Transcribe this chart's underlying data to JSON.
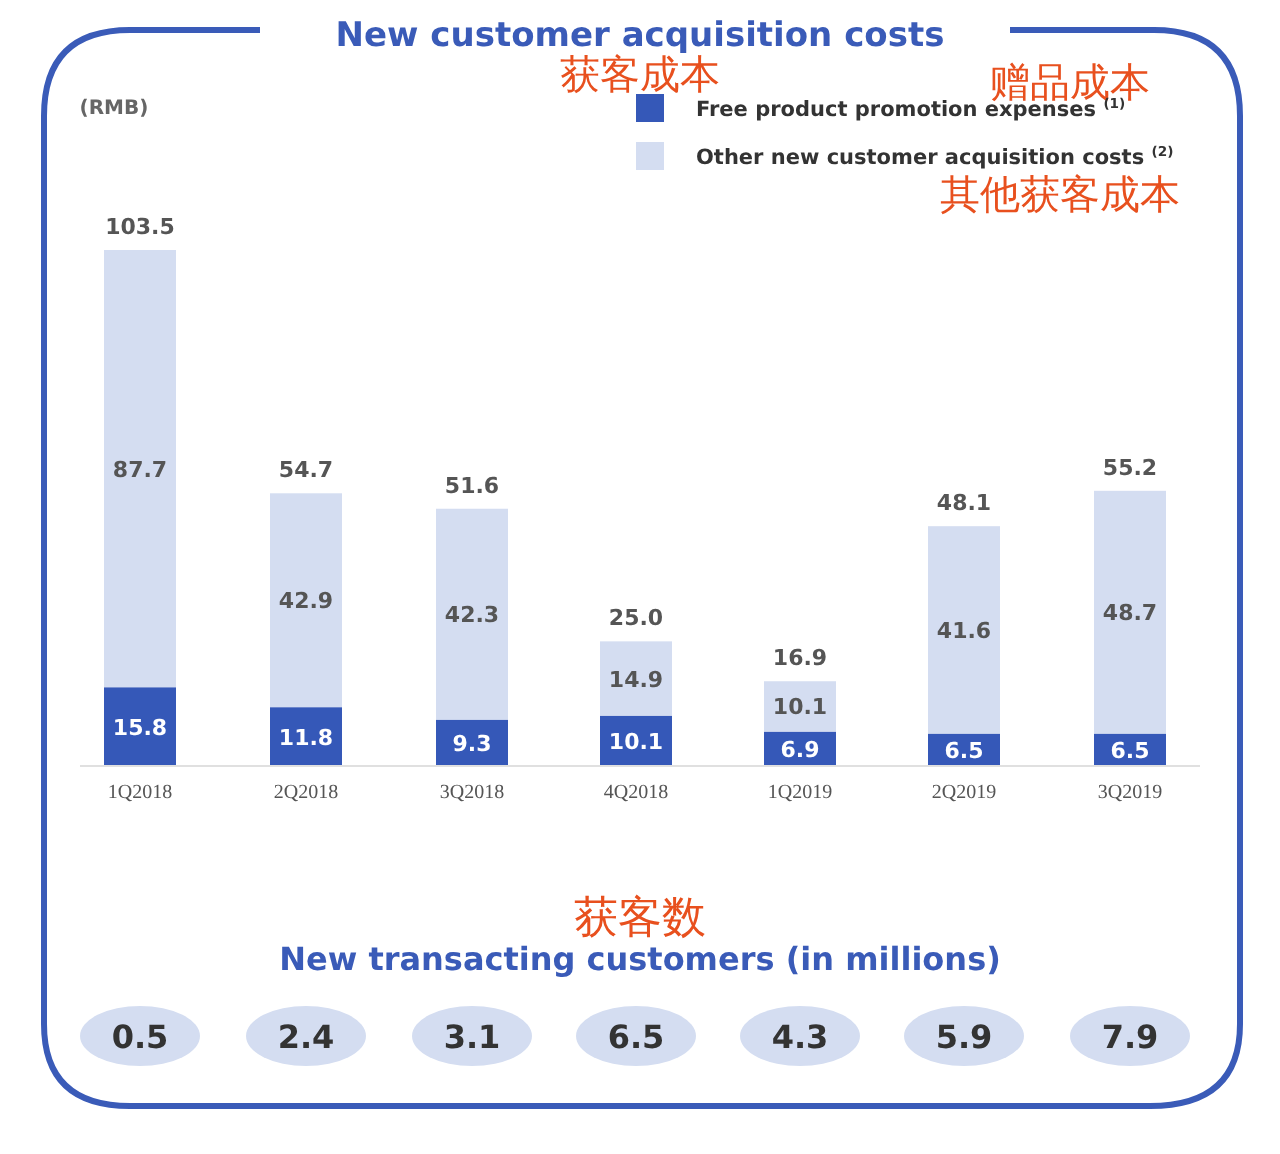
{
  "chart_data": [
    {
      "type": "bar",
      "title": "New customer acquisition costs",
      "ylabel": "(RMB)",
      "annotations": [
        "获客成本",
        "赠品成本",
        "其他获客成本"
      ],
      "categories": [
        "1Q2018",
        "2Q2018",
        "3Q2018",
        "4Q2018",
        "1Q2019",
        "2Q2019",
        "3Q2019"
      ],
      "stacked": true,
      "data_labels": true,
      "legend": "top right",
      "series": [
        {
          "name": "Free product promotion expenses $^{(1)}$",
          "color": "#3558b8",
          "values": [
            15.8,
            11.8,
            9.3,
            10.1,
            6.9,
            6.5,
            6.5
          ]
        },
        {
          "name": "Other new customer acquisition costs $^{(2)}$",
          "color": "#d4ddf1",
          "values": [
            87.7,
            42.9,
            42.3,
            14.9,
            10.1,
            41.6,
            48.7
          ]
        }
      ],
      "totals": [
        "103.5",
        "54.7",
        "51.6",
        "25.0",
        "16.9",
        "48.1",
        "55.2"
      ]
    },
    {
      "type": "other",
      "title": "New transacting customers (in millions)",
      "annotations": [
        "获客数"
      ],
      "categories": [
        null,
        null,
        null,
        null,
        null,
        null,
        null
      ],
      "color": "#d4ddf1",
      "data_labels": true,
      "values": [
        0.5,
        2.4,
        3.1,
        6.5,
        4.3,
        5.9,
        7.9
      ]
    }
  ]
}
